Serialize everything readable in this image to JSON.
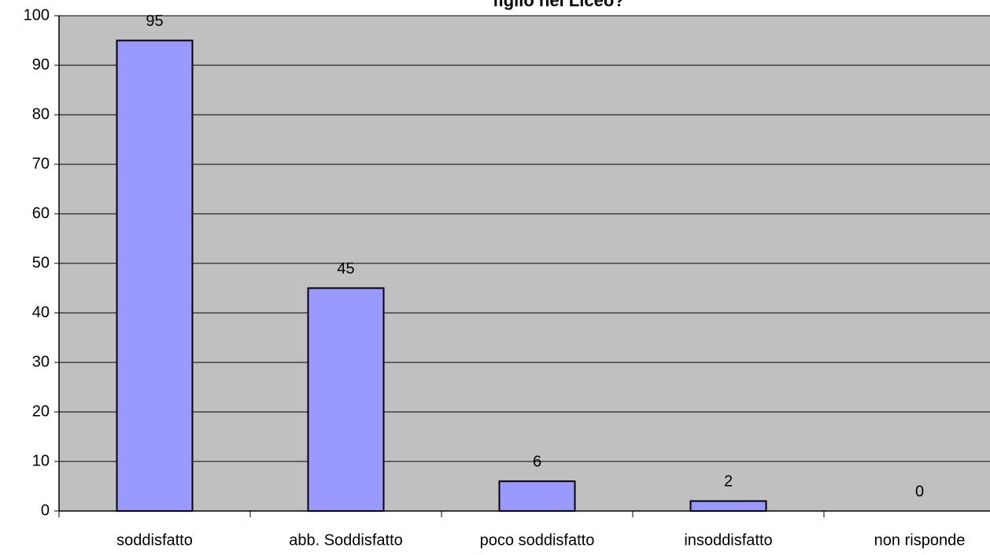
{
  "chart_data": {
    "type": "bar",
    "title": "figlio nel Liceo?",
    "categories": [
      "soddisfatto",
      "abb. Soddisfatto",
      "poco soddisfatto",
      "insoddisfatto",
      "non risponde"
    ],
    "values": [
      95,
      45,
      6,
      2,
      0
    ],
    "color": "#9999ff",
    "background": "#c0c0c0",
    "ylim": [
      0,
      100
    ],
    "yticks": [
      0,
      10,
      20,
      30,
      40,
      50,
      60,
      70,
      80,
      90,
      100
    ],
    "grid": true
  }
}
